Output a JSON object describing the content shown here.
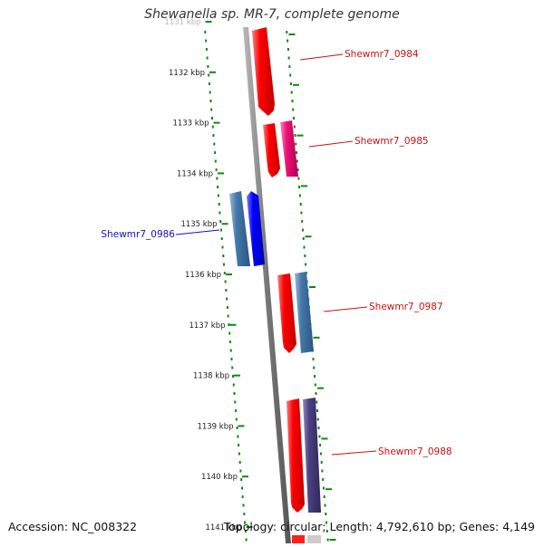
{
  "header": {
    "title": "Shewanella sp. MR-7, complete genome"
  },
  "footer": {
    "accession": "Accession: NC_008322",
    "topology": "Topology: circular; Length: 4,792,610 bp; Genes: 4,149"
  },
  "ruler": {
    "ticks": [
      "1131 kbp",
      "1132 kbp",
      "1133 kbp",
      "1134 kbp",
      "1135 kbp",
      "1136 kbp",
      "1137 kbp",
      "1138 kbp",
      "1139 kbp",
      "1140 kbp",
      "1141 kbp"
    ],
    "tick_color": "#118811",
    "backbone_color": "#888888"
  },
  "genes": [
    {
      "label": "Shewmr7_0984",
      "strand": "forward",
      "color": "#ff0000",
      "label_color": "#cc1111"
    },
    {
      "label": "Shewmr7_0985",
      "strand": "forward",
      "color": "#ff0000",
      "label_color": "#cc1111"
    },
    {
      "label": "Shewmr7_0986",
      "strand": "reverse",
      "color": "#0000ff",
      "label_color": "#1111bb"
    },
    {
      "label": "Shewmr7_0987",
      "strand": "forward",
      "color": "#ff0000",
      "label_color": "#cc1111"
    },
    {
      "label": "Shewmr7_0988",
      "strand": "forward",
      "color": "#ff0000",
      "label_color": "#cc1111"
    }
  ],
  "colors": {
    "forward_gene": "#ff0000",
    "reverse_gene": "#0000ff",
    "magenta_feature": "#ee1177",
    "steelblue_feature": "#4477aa",
    "purple_feature": "#4a4080"
  }
}
